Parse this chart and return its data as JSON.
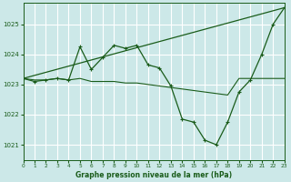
{
  "xlabel": "Graphe pression niveau de la mer (hPa)",
  "bg_color": "#cce8e8",
  "grid_color": "#ffffff",
  "line_color": "#1a5c1a",
  "marker_color": "#1a5c1a",
  "line1_x": [
    0,
    1,
    2,
    3,
    4,
    5,
    6,
    7,
    8,
    9,
    10,
    11,
    12,
    13,
    14,
    15,
    16,
    17,
    18,
    19,
    20,
    21,
    22,
    23
  ],
  "line1_y": [
    1023.2,
    1023.1,
    1023.15,
    1023.2,
    1023.15,
    1024.25,
    1023.5,
    1023.9,
    1024.3,
    1024.2,
    1024.3,
    1023.65,
    1023.55,
    1022.95,
    1021.85,
    1021.75,
    1021.15,
    1021.0,
    1021.75,
    1022.75,
    1023.15,
    1024.0,
    1025.0,
    1025.55
  ],
  "line2_x": [
    0,
    1,
    2,
    3,
    4,
    5,
    6,
    7,
    8,
    9,
    10,
    11,
    12,
    13,
    14,
    15,
    16,
    17,
    18,
    19,
    20,
    21,
    22,
    23
  ],
  "line2_y": [
    1023.2,
    1023.15,
    1023.15,
    1023.2,
    1023.15,
    1023.2,
    1023.1,
    1023.1,
    1023.1,
    1023.05,
    1023.05,
    1023.0,
    1022.95,
    1022.9,
    1022.85,
    1022.8,
    1022.75,
    1022.7,
    1022.65,
    1023.2,
    1023.2,
    1023.2,
    1023.2,
    1023.2
  ],
  "line3_x": [
    0,
    23
  ],
  "line3_y": [
    1023.2,
    1025.55
  ],
  "xlim": [
    0,
    23
  ],
  "ylim": [
    1020.5,
    1025.7
  ],
  "yticks": [
    1021,
    1022,
    1023,
    1024,
    1025
  ],
  "xticks": [
    0,
    1,
    2,
    3,
    4,
    5,
    6,
    7,
    8,
    9,
    10,
    11,
    12,
    13,
    14,
    15,
    16,
    17,
    18,
    19,
    20,
    21,
    22,
    23
  ]
}
